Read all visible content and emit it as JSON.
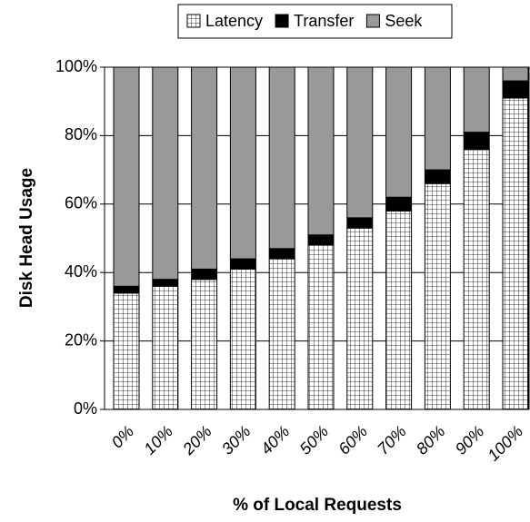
{
  "chart_data": {
    "type": "stacked_bar",
    "xlabel": "% of Local Requests",
    "ylabel": "Disk Head Usage",
    "categories": [
      "0%",
      "10%",
      "20%",
      "30%",
      "40%",
      "50%",
      "60%",
      "70%",
      "80%",
      "90%",
      "100%"
    ],
    "series": [
      {
        "name": "Latency",
        "color": "#ffffff",
        "hatch": "grid",
        "values": [
          34,
          36,
          38,
          41,
          44,
          48,
          53,
          58,
          66,
          76,
          91
        ]
      },
      {
        "name": "Transfer",
        "color": "#000000",
        "values": [
          2,
          2,
          3,
          3,
          3,
          3,
          3,
          4,
          4,
          5,
          5
        ]
      },
      {
        "name": "Seek",
        "color": "#999999",
        "values": [
          64,
          62,
          59,
          56,
          53,
          49,
          44,
          38,
          30,
          19,
          4
        ]
      }
    ],
    "ylim": [
      0,
      100
    ],
    "yticks": [
      {
        "value": 0,
        "label": "0%"
      },
      {
        "value": 20,
        "label": "20%"
      },
      {
        "value": 40,
        "label": "40%"
      },
      {
        "value": 60,
        "label": "60%"
      },
      {
        "value": 80,
        "label": "80%"
      },
      {
        "value": 100,
        "label": "100%"
      }
    ],
    "grid": true,
    "legend": "top"
  }
}
